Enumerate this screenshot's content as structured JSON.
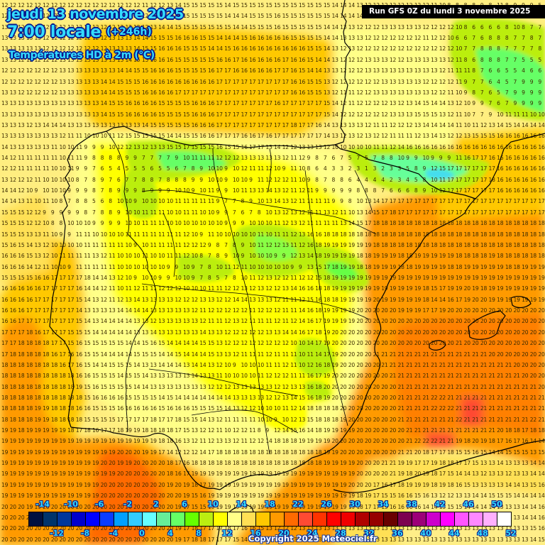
{
  "header": {
    "date": "jeudi 13 novembre 2025",
    "time": "7:00 locale",
    "lead": "(+246h)",
    "parameter": "Températures HD à 2m (°C)",
    "run": "Run GFS 0Z du lundi 3 novembre 2025"
  },
  "footer": {
    "copyright": "Copyright 2025 Meteociel.fr"
  },
  "colorbar": {
    "top_labels": [
      "-14",
      "-10",
      "-6",
      "-2",
      "2",
      "6",
      "10",
      "14",
      "18",
      "22",
      "26",
      "30",
      "34",
      "38",
      "42",
      "46",
      "50"
    ],
    "bottom_labels": [
      "-12",
      "-8",
      "-4",
      "0",
      "4",
      "8",
      "12",
      "16",
      "20",
      "24",
      "28",
      "32",
      "36",
      "40",
      "44",
      "48",
      "52"
    ],
    "colors": [
      "#001040",
      "#00346c",
      "#00379c",
      "#0000cc",
      "#0000ff",
      "#0a3cff",
      "#00a0ff",
      "#33ccff",
      "#66ffff",
      "#66ee99",
      "#66ff66",
      "#66ff00",
      "#bbee11",
      "#ffff00",
      "#ffff88",
      "#ffe055",
      "#ffc800",
      "#ff9a00",
      "#ff6a00",
      "#ff4a33",
      "#ff3300",
      "#ff0000",
      "#f00000",
      "#b00000",
      "#960000",
      "#6a0000",
      "#7c0050",
      "#9c0078",
      "#cc00cc",
      "#ff00ff",
      "#ff55ff",
      "#ff88ff",
      "#ffb0ff",
      "#ffffff"
    ]
  },
  "legend_scale": {
    "min": -14,
    "max": 52,
    "step": 2,
    "unit": "°C"
  },
  "map": {
    "region": "Iberian Peninsula, Balearic Islands, southern France",
    "grid_rows": [
      "12 12 12 12 12 12 12 12 12 12 12 12 12 12 12 12 12 11 12 12 13 14 15 15 15 15 15 14 15 15 15 15 15 15 15 15 15 15 15 15 14 14 14 13 12 12 12 12 12 12 12 12 11 10 8 8 8 8 9 8 11 8 9 9 9 5",
      "12 12 12 12 12 12 12 12 12 12 12 12 12 12 12 12 12 12 13 14 15 15 15 15 15 15 15 14 14 14 15 15 15 16 15 15 15 15 15 15 14 14 14 14 13 12 12 12 12 12 12 12 12 12 11 10 8 8 8 9 8 10 8 9 9 6",
      "13 13 12 12 12 12 12 12 12 12 12 12 12 12 12 12 12 12 13 14 14 15 15 15 15 15 15 15 14 14 15 15 15 16 15 15 15 15 15 14 14 13 13 12 12 12 13 13 13 13 13 12 12 12 12 10 8 6 6 6 6 8 10 8 7 7",
      "13 13 13 13 13 12 12 12 12 12 12 12 12 13 13 13 14 14 15 15 15 16 16 16 15 15 14 14 14 15 16 16 16 16 16 15 15 15 15 14 14 13 13 13 12 12 12 12 12 12 12 11 12 12 10 6 6 7 6 8 8 8 7 7 8 7",
      "13 13 13 13 13 12 12 12 12 12 12 12 12 13 13 13 14 15 15 16 16 16 15 15 15 14 14 15 16 16 16 16 16 16 16 16 16 15 15 14 13 12 13 12 12 12 12 12 12 12 12 12 12 12 12 10 7 7 8 8 8 7 7 7 7 8",
      "13 13 12 12 12 12 12 13 13 13 13 13 13 13 13 14 15 15 16 16 16 15 15 15 15 15 16 16 17 16 16 16 16 16 17 16 16 15 14 14 13 12 12 12 13 13 13 12 12 13 13 13 13 13 12 11 8 6 8 8 8 7 7 5 5 5",
      "12 12 12 12 12 12 12 13 13 13 13 13 13 13 14 14 15 15 16 16 16 15 15 15 15 16 17 17 16 16 16 16 16 17 17 16 15 14 14 13 13 12 12 12 13 13 13 13 13 13 13 13 13 12 11 11 11 8 7 6 6 5 5 4 6 6",
      "12 12 12 12 12 12 12 13 13 13 13 13 14 14 15 15 15 16 16 16 16 16 16 16 16 16 17 17 17 17 17 17 17 17 17 16 16 15 15 13 12 12 12 12 12 12 13 13 13 13 13 12 12 12 12 11 9 7 7 6 4 5 7 9 9 9",
      "13 13 12 12 12 12 12 13 13 13 13 13 14 14 15 15 15 16 16 16 16 17 17 17 17 17 17 17 17 17 17 17 17 17 17 16 16 15 15 13 12 11 11 12 12 13 13 13 13 13 13 13 12 12 11 10 9 8 7 6 5 7 9 9 9 9",
      "13 13 13 13 13 13 13 13 13 13 13 13 14 15 15 16 16 16 16 15 15 15 15 16 16 16 17 17 17 17 17 17 17 16 17 17 17 17 17 15 14 12 11 12 12 12 12 13 12 13 14 15 14 14 13 12 10 9 9 7 6 7 9 9 9 9",
      "13 13 13 13 13 13 13 13 13 13 13 13 14 15 15 16 16 16 16 15 15 15 15 16 16 16 17 17 17 17 17 17 17 17 17 17 17 17 17 15 14 12 12 12 12 12 12 13 13 13 15 15 15 13 12 11 10 7 7 9 10 11 11 11 10 10",
      "13 13 13 12 13 14 14 14 13 13 13 13 13 13 13 13 13 14 15 15 15 15 15 16 16 16 17 17 17 17 17 17 17 17 17 18 17 17 16 14 13 13 13 13 12 11 11 12 12 12 13 14 14 14 14 11 10 11 12 13 14 15 14 14 14 14",
      "13 13 13 13 13 13 13 12 11 11 10 10 10 11 12 15 15 15 15 15 14 14 15 15 16 16 17 17 17 16 16 17 16 17 17 17 17 17 17 14 13 12 13 12 13 12 12 11 11 11 12 13 14 13 12 12 13 15 15 15 16 16 16 16 16 16",
      "14 13 13 13 13 13 11 10 10 11 9 9 9 10 12 12 13 12 13 13 15 15 17 15 15 15 16 15 15 16 17 17 13 14 12 12 13 13 13 12 10 10 10 10 10 11 11 12 14 16 16 16 16 16 16 16 16 16 16 16 16 16 16 16 16 16",
      "14 12 11 11 11 11 11 10 11 11 9 8 8 8 8 9 9 7 7 7 7 9 10 11 11 11 12 12 12 13 13 13 13 13 12 11 12 9 8 7 6 7 5 7 5 7 8 8 10 9 9 10 9 9 9 11 16 17 17 16 16 16 16 16 16 16",
      "12 12 11 11 11 11 10 10 11 9 9 7 6 5 4 5 5 5 6 5 5 6 7 8 9 10 10 9 10 12 11 11 12 10 9 11 10 8 6 4 3 3 2 3 1 3 2 3 3 5 8 9 12 15 17 17 17 17 17 17 16 16 16 16 16 16",
      "13 12 12 12 11 10 10 10 10 8 7 8 9 7 6 7 7 8 8 7 8 8 8 9 9 10 10 9 10 10 9 11 12 12 12 11 10 9 8 7 8 8 6 4 4 4 4 2 3 4 5 8 10 11 17 17 17 17 17 18 16 16 16 16 16 16",
      "14 14 12 10 9 10 10 10 9 9 9 8 7 8 9 9 9 8 9 9 9 10 10 9 10 11 9 9 10 11 13 13 14 13 12 11 12 11 9 9 9 9 9 8 8 8 7 6 6 6 8 9 10 12 17 17 17 17 17 17 16 16 16 16 16 16",
      "14 14 13 11 10 11 10 8 7 8 8 5 6 8 10 10 9 10 10 10 10 11 11 11 11 11 9 7 7 8 9 10 13 14 13 12 11 11 11 11 9 9 8 10 13 14 17 17 17 17 17 17 17 17 17 17 17 17 17 17 17 17 17 17 17 17",
      "15 15 15 12 12 9 9 9 9 9 8 7 8 8 9 10 10 11 11 11 10 10 11 11 10 10 9 9 7 6 7 8 10 13 12 13 12 11 11 13 12 11 10 13 14 15 17 18 17 17 17 17 17 17 17 17 17 17 17 17 17 17 17 17 17 17",
      "15 15 15 12 12 10 8 8 10 10 10 9 9 9 9 10 10 11 11 11 10 10 10 10 10 10 10 9 9 9 10 10 10 11 12 13 12 11 11 11 11 13 14 15 17 18 18 18 18 18 18 18 18 18 18 18 18 18 18 18 18 18 18 18 18 18",
      "15 15 15 13 13 11 10 9 9 11 11 10 10 10 10 11 11 11 11 11 11 11 12 10 9 11 10 10 10 10 10 11 10 11 11 12 13 16 16 18 18 18 18 18 18 18 18 18 18 18 18 18 18 18 18 18 18 18 18 18 18 18 18 18 18 18",
      "15 16 15 14 13 12 10 10 10 10 11 11 11 11 11 10 9 10 11 11 11 11 12 12 12 9 8 7 8 9 10 11 12 12 13 11 12 16 18 19 19 19 19 19 19 18 18 18 18 18 18 18 18 18 18 18 18 18 18 18 18 18 18 18 18 18",
      "16 16 16 15 13 12 10 11 11 11 11 13 12 11 10 10 10 11 10 10 11 11 12 10 8 7 8 9 10 9 10 10 10 9 9 12 13 14 18 19 19 19 19 18 18 19 19 19 18 18 19 19 19 19 19 18 18 18 18 19 18 18 18 18 18 18",
      "16 16 16 14 12 11 10 10 9 11 11 11 11 11 10 10 10 10 10 10 9 9 10 9 7 8 10 11 12 11 10 10 10 10 10 9 9 13 15 17 18 19 19 18 18 19 19 19 18 18 19 19 19 19 18 18 19 19 19 19 19 18 18 19 19 19",
      "15 15 15 15 16 16 17 17 17 17 18 14 14 13 12 10 9 10 10 9 9 10 10 9 7 8 5 7 8 10 11 12 13 12 12 11 12 12 15 18 19 19 19 19 19 19 19 19 19 19 19 19 19 19 19 19 19 19 19 19 19 19 19 19 19 19",
      "16 16 16 16 16 17 17 17 17 16 14 14 12 11 10 11 12 11 11 12 12 12 10 10 10 11 11 12 12 13 12 13 12 12 13 14 16 16 18 18 19 19 19 19 19 19 19 19 19 19 19 18 15 17 19 19 20 19 18 19 19 19 19 19 19 19",
      "16 16 16 16 17 17 17 17 17 15 14 13 12 11 12 13 14 13 13 13 13 12 12 12 13 13 12 12 14 14 13 13 13 12 11 11 12 15 16 18 18 19 19 19 19 20 19 19 19 19 19 18 14 14 16 17 19 20 20 19 19 19 19 19 19 19",
      "16 16 16 17 17 17 17 17 17 14 13 13 13 13 14 14 14 14 13 13 13 13 13 12 11 12 12 12 12 12 11 12 12 12 11 11 14 16 18 19 19 19 19 20 20 20 20 20 19 19 19 17 17 19 20 20 20 20 20 20 20 20 20 20 20 20",
      "16 16 17 17 17 17 17 17 17 15 14 13 14 14 14 14 13 13 12 13 13 13 13 13 12 11 11 12 13 12 11 11 11 12 11 12 14 16 17 19 19 19 19 20 20 20 20 20 20 20 20 20 20 20 20 20 20 20 20 20 20 20 20 20 20 20",
      "17 17 17 18 16 17 17 17 15 15 15 14 14 14 14 14 13 13 14 13 13 13 13 13 14 13 13 12 12 12 12 12 13 13 14 14 16 17 18 19 20 20 20 20 20 20 20 20 20 20 20 20 20 20 20 20 20 20 20 20 20 20 20 20 20 20",
      "17 17 18 18 18 18 17 17 15 16 15 15 15 15 15 14 14 15 16 15 14 14 14 14 15 15 13 12 12 12 12 12 12 12 12 10 10 14 17 19 20 20 20 20 20 20 20 20 20 20 20 20 20 20 20 21 20 20 20 20 20 20 20 20 20 20",
      "17 18 18 18 18 18 16 17 16 16 15 15 14 14 14 14 15 15 15 14 14 15 14 14 14 15 13 13 12 11 11 11 12 11 11 11 10 11 14 17 19 20 20 20 20 21 21 21 21 21 21 21 21 21 21 21 21 21 21 20 20 20 20 20 20 20",
      "18 18 18 18 18 18 18 16 17 16 15 14 14 15 15 15 14 13 13 14 14 14 13 14 14 13 12 10 9 10 10 10 11 11 12 11 10 12 16 18 19 20 20 20 20 20 21 21 21 21 21 21 21 21 21 21 21 21 21 21 21 21 20 20 20 20",
      "18 18 18 18 18 18 18 18 18 16 16 15 15 15 14 15 15 14 13 13 13 13 13 14 13 13 11 10 10 10 10 11 12 12 12 11 11 16 17 19 20 20 20 20 20 20 20 21 21 21 21 21 21 21 21 21 21 21 21 21 21 21 21 20 20 20",
      "18 18 18 18 18 18 18 18 18 19 15 16 15 15 15 15 14 14 13 13 13 13 13 13 13 12 12 12 13 13 13 13 13 12 12 13 13 16 18 20 20 20 20 20 20 20 20 20 21 21 21 21 21 22 21 21 21 21 21 21 21 21 21 21 21 20",
      "18 18 18 18 18 18 18 18 18 18 15 16 16 16 16 15 15 15 15 14 15 14 14 14 14 14 14 14 13 13 13 13 12 12 13 14 15 16 18 19 20 20 20 20 20 20 20 20 21 21 21 21 22 22 21 21 21 21 21 21 21 21 21 21 21 21",
      "18 18 18 18 19 19 18 18 18 16 16 15 15 15 16 16 16 16 16 15 16 16 16 15 15 15 15 14 13 12 12 10 10 10 11 12 14 18 18 18 18 20 20 20 20 20 20 20 21 21 21 21 22 22 22 21 21 21 21 21 21 21 21 21 21 21",
      "18 18 18 18 19 19 18 18 18 18 15 15 15 15 17 17 17 17 18 17 17 18 15 15 14 13 12 11 11 11 11 10 10 9 10 12 13 15 18 18 18 19 20 20 20 20 20 20 21 21 21 21 21 21 21 22 21 21 21 21 21 21 21 21 22 21",
      "19 19 18 19 19 19 19 19 18 17 18 16 17 17 18 19 19 18 18 18 18 17 15 13 12 12 11 10 12 12 11 8 9 12 14 15 16 14 18 19 19 19 19 20 20 20 20 20 20 21 21 21 21 21 21 21 21 21 21 21 20 18 18 17 18 18",
      "19 19 19 19 19 19 19 19 19 19 19 19 19 19 19 19 19 19 19 18 18 16 13 12 11 12 13 13 12 11 12 12 14 18 18 18 19 19 19 19 20 20 20 20 20 20 20 20 20 21 22 22 22 21 21 19 18 20 19 18 17 16 17 16 14 14",
      "19 19 19 19 19 19 19 19 19 19 19 19 19 19 20 20 20 19 19 17 14 12 12 12 14 17 18 18 18 18 18 18 18 18 18 18 18 18 18 19 19 20 20 20 20 20 20 20 21 21 20 18 17 17 18 15 15 16 15 14 14 15 15 15 13 15",
      "19 19 19 19 19 19 19 19 19 19 19 19 20 20 19 19 20 20 20 20 18 17 16 18 18 18 18 18 18 18 18 18 18 18 18 18 18 18 18 19 19 19 19 20 20 20 21 21 19 19 17 17 19 18 18 17 17 15 13 13 14 13 13 13 14 14",
      "19 19 19 19 19 19 19 19 19 19 19 19 19 19 20 20 20 20 20 20 18 16 17 19 19 19 19 19 19 19 19 19 19 19 19 19 19 19 19 19 19 19 19 20 20 20 20 21 19 18 20 19 18 17 15 14 14 13 12 13 13 12 13 13 14 14",
      "19 19 19 19 19 19 19 19 19 19 19 19 20 20 20 20 20 20 20 20 19 20 19 18 17 19 19 19 19 19 19 19 19 19 19 19 19 19 19 19 19 19 20 20 20 17 16 17 18 19 19 19 18 19 18 16 15 13 13 13 13 14 14 13 15 16",
      "19 19 19 19 19 19 19 19 19 19 19 19 20 20 20 20 20 20 20 20 20 20 19 15 16 19 19 19 19 19 19 19 19 19 19 19 19 19 19 19 19 19 19 18 19 17 15 15 16 16 15 16 13 12 12 13 13 14 14 15 15 15 14 14 14 14",
      "20 20 20 19 19 20 20 20 20 20 20 20 20 20 20 20 20 20 20 20 20 19 17 15 15 19 19 19 19 19 19 19 19 19 19 19 19 19 19 19 19 19 19 18 17 17 15 16 16 16 16 14 14 15 15 15 14 14 14 14 13 13 13 14 14 16",
      "20 20 20 20 20 20 20 20 20 20 20 20 20 20 20 20 20 20 20 20 20 19 19 17 16 17 17 17 16 16 17 16 17 18 17 18 18 18 17 17 17 17 17 15 15 15 15 14 13 13 13 13 13 13 13 13 13 13 14 14 13 13 13 14 14 16",
      "20 20 20 20 20 20 20 20 20 20 20 20 20 20 20 20 20 20 20 20 20 19 17 18 17 17 17 18 17 16 16 15 13 12 12 12 13 13 13 13 13 13 13 13 13 13 13 13 13 13 13 13 13 13 13 13 13 13 13 13 13 13 13 13 15 16",
      "20 20 20 20 20 20 20 20 20 20 20 20 20 20 20 20 20 20 20 20 20 19 17 18 18 17 17 17 15 14 13 13 13 12 12 13 13 13 13 13 13 13 13 13 13 13 13 13 13 13 13 13 13 13 13 13 13 13 13 13 13 13 13 13 14 15"
    ]
  }
}
